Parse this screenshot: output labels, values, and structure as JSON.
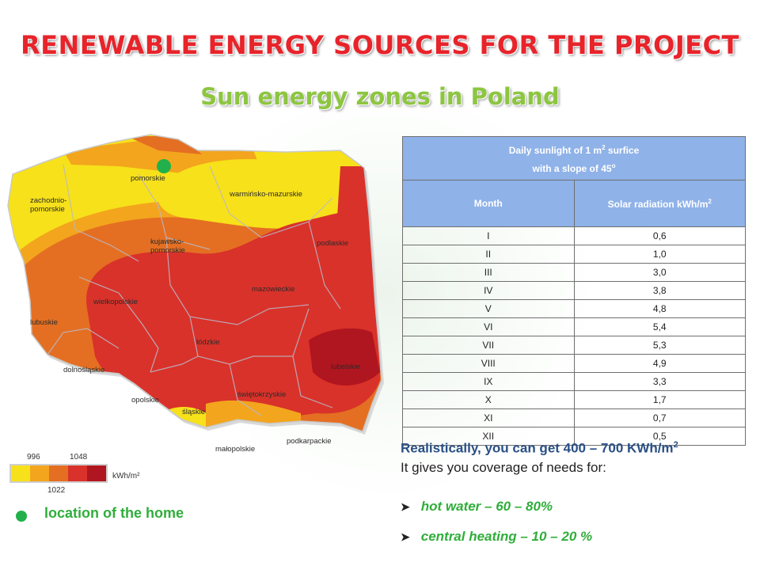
{
  "title": "RENEWABLE ENERGY SOURCES FOR THE PROJECT",
  "subtitle": "Sun energy zones in Poland",
  "map": {
    "regions": [
      "pomorskie",
      "zachodnio-",
      "pomorskie",
      "warmińsko-mazurskie",
      "kujawsko-",
      "pomorskie",
      "podlaskie",
      "wielkopolskie",
      "mazowieckie",
      "lubuskie",
      "łódzkie",
      "lubelskie",
      "dolnośląskie",
      "opolskie",
      "świętokrzyskie",
      "śląskie",
      "małopolskie",
      "podkarpackie"
    ],
    "legend": {
      "values": [
        "996",
        "1048",
        "1022"
      ],
      "unit": "kWh/m²",
      "colors": [
        "#f7e11a",
        "#f3a51d",
        "#e46f22",
        "#d9322a",
        "#b0161f"
      ]
    },
    "home_marker_color": "#22b04c"
  },
  "table": {
    "header_line1": "Daily sunlight of 1 m",
    "header_line1_sup": "2",
    "header_line1_end": " surfice",
    "header_line2": "with a slope of 45",
    "header_line2_sup": "o",
    "col_month": "Month",
    "col_radiation": "Solar radiation kWh/m",
    "col_radiation_sup": "2",
    "rows": [
      {
        "month": "I",
        "value": "0,6"
      },
      {
        "month": "II",
        "value": "1,0"
      },
      {
        "month": "III",
        "value": "3,0"
      },
      {
        "month": "IV",
        "value": "3,8"
      },
      {
        "month": "V",
        "value": "4,8"
      },
      {
        "month": "VI",
        "value": "5,4"
      },
      {
        "month": "VII",
        "value": "5,3"
      },
      {
        "month": "VIII",
        "value": "4,9"
      },
      {
        "month": "IX",
        "value": "3,3"
      },
      {
        "month": "X",
        "value": "1,7"
      },
      {
        "month": "XI",
        "value": "0,7"
      },
      {
        "month": "XII",
        "value": "0,5"
      }
    ],
    "header_color": "#8fb2e8"
  },
  "info": {
    "line1": "Realistically, you can get 400 – 700 KWh/m",
    "line1_sup": "2",
    "line2": "It gives you coverage of needs for:"
  },
  "bullets": [
    {
      "icon": "arrow-bullet-icon",
      "text": "hot water – 60 – 80%"
    },
    {
      "icon": "arrow-bullet-icon",
      "text": "central heating – 10 – 20 %"
    }
  ],
  "legend_location": "location of the home",
  "colors": {
    "title": "#e8232a",
    "subtitle": "#8cc63f",
    "accent_green": "#2fae3a",
    "info_blue": "#2a4f85"
  }
}
